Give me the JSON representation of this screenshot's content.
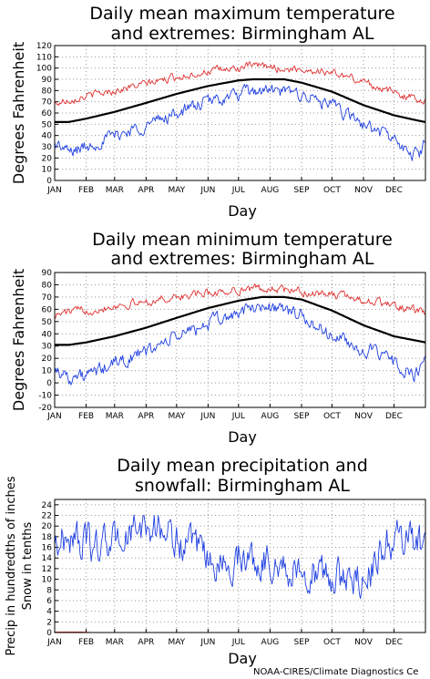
{
  "credit": "NOAA-CIRES/Climate Diagnostics Ce",
  "colors": {
    "mean": "#000000",
    "high": "#e03030",
    "low": "#2040e0",
    "snow": "#e03030",
    "grid": "#9a9a9a"
  },
  "chart_data": [
    {
      "type": "line",
      "title": [
        "Daily mean maximum temperature",
        "and extremes: Birmingham AL"
      ],
      "xlabel": "Day",
      "ylabel": "Degrees Fahrenheit",
      "months": [
        "JAN",
        "FEB",
        "MAR",
        "APR",
        "MAY",
        "JUN",
        "JUL",
        "AUG",
        "SEP",
        "OCT",
        "NOV",
        "DEC"
      ],
      "ylim": [
        0,
        120
      ],
      "yticks": [
        0,
        10,
        20,
        30,
        40,
        50,
        60,
        70,
        80,
        90,
        100,
        110,
        120
      ],
      "grid": true,
      "series": [
        {
          "name": "",
          "role": "mean",
          "color": "#000000",
          "knots": [
            [
              1,
              52
            ],
            [
              15,
              52
            ],
            [
              32,
              55
            ],
            [
              60,
              61
            ],
            [
              91,
              69
            ],
            [
              121,
              77
            ],
            [
              152,
              84
            ],
            [
              182,
              89
            ],
            [
              196,
              90
            ],
            [
              213,
              90
            ],
            [
              227,
              90
            ],
            [
              244,
              87
            ],
            [
              274,
              79
            ],
            [
              305,
              67
            ],
            [
              335,
              58
            ],
            [
              360,
              53
            ],
            [
              366,
              52
            ]
          ]
        },
        {
          "name": "",
          "role": "high",
          "color": "#e03030",
          "knots": [
            [
              1,
              68
            ],
            [
              15,
              72
            ],
            [
              32,
              75
            ],
            [
              60,
              80
            ],
            [
              91,
              86
            ],
            [
              121,
              92
            ],
            [
              152,
              97
            ],
            [
              182,
              100
            ],
            [
              196,
              102
            ],
            [
              213,
              101
            ],
            [
              227,
              99
            ],
            [
              244,
              99
            ],
            [
              274,
              96
            ],
            [
              305,
              88
            ],
            [
              335,
              78
            ],
            [
              360,
              72
            ],
            [
              366,
              72
            ]
          ]
        },
        {
          "name": "",
          "role": "low",
          "color": "#2040e0",
          "knots": [
            [
              1,
              33
            ],
            [
              15,
              25
            ],
            [
              32,
              30
            ],
            [
              60,
              40
            ],
            [
              91,
              49
            ],
            [
              121,
              60
            ],
            [
              152,
              70
            ],
            [
              182,
              76
            ],
            [
              196,
              79
            ],
            [
              213,
              80
            ],
            [
              227,
              78
            ],
            [
              244,
              77
            ],
            [
              274,
              66
            ],
            [
              305,
              50
            ],
            [
              335,
              37
            ],
            [
              350,
              22
            ],
            [
              360,
              25
            ],
            [
              366,
              35
            ]
          ]
        }
      ]
    },
    {
      "type": "line",
      "title": [
        "Daily mean minimum temperature",
        "and extremes: Birmingham AL"
      ],
      "xlabel": "Day",
      "ylabel": "Degrees Fahrenheit",
      "months": [
        "JAN",
        "FEB",
        "MAR",
        "APR",
        "MAY",
        "JUN",
        "JUL",
        "AUG",
        "SEP",
        "OCT",
        "NOV",
        "DEC"
      ],
      "ylim": [
        -20,
        90
      ],
      "yticks": [
        -20,
        -10,
        0,
        10,
        20,
        30,
        40,
        50,
        60,
        70,
        80,
        90
      ],
      "grid": true,
      "series": [
        {
          "name": "",
          "role": "mean",
          "color": "#000000",
          "knots": [
            [
              1,
              31
            ],
            [
              15,
              31
            ],
            [
              32,
              33
            ],
            [
              60,
              38
            ],
            [
              91,
              45
            ],
            [
              121,
              53
            ],
            [
              152,
              61
            ],
            [
              182,
              67
            ],
            [
              205,
              70
            ],
            [
              227,
              70
            ],
            [
              244,
              68
            ],
            [
              274,
              59
            ],
            [
              305,
              47
            ],
            [
              335,
              38
            ],
            [
              360,
              34
            ],
            [
              366,
              33
            ]
          ]
        },
        {
          "name": "",
          "role": "high",
          "color": "#e03030",
          "knots": [
            [
              1,
              55
            ],
            [
              15,
              58
            ],
            [
              32,
              59
            ],
            [
              60,
              63
            ],
            [
              91,
              66
            ],
            [
              121,
              70
            ],
            [
              152,
              73
            ],
            [
              182,
              76
            ],
            [
              205,
              77
            ],
            [
              227,
              76
            ],
            [
              244,
              74
            ],
            [
              274,
              72
            ],
            [
              305,
              68
            ],
            [
              335,
              63
            ],
            [
              360,
              58
            ],
            [
              366,
              57
            ]
          ]
        },
        {
          "name": "",
          "role": "low",
          "color": "#2040e0",
          "knots": [
            [
              1,
              12
            ],
            [
              15,
              5
            ],
            [
              32,
              5
            ],
            [
              60,
              16
            ],
            [
              91,
              25
            ],
            [
              121,
              38
            ],
            [
              152,
              48
            ],
            [
              182,
              57
            ],
            [
              205,
              63
            ],
            [
              227,
              60
            ],
            [
              244,
              54
            ],
            [
              274,
              38
            ],
            [
              305,
              27
            ],
            [
              335,
              17
            ],
            [
              355,
              5
            ],
            [
              366,
              15
            ]
          ]
        }
      ]
    },
    {
      "type": "line",
      "title": [
        "Daily mean precipitation and",
        "snowfall: Birmingham AL"
      ],
      "xlabel": "Day",
      "ylabel": [
        "Precip in hundredths of inches",
        "Snow in tenths"
      ],
      "months": [
        "JAN",
        "FEB",
        "MAR",
        "APR",
        "MAY",
        "JUN",
        "JUL",
        "AUG",
        "SEP",
        "OCT",
        "NOV",
        "DEC"
      ],
      "ylim": [
        0,
        25
      ],
      "yticks": [
        0,
        2,
        4,
        6,
        8,
        10,
        12,
        14,
        16,
        18,
        20,
        22,
        24
      ],
      "grid": true,
      "series": [
        {
          "name": "",
          "role": "precip",
          "color": "#2040e0",
          "knots": [
            [
              1,
              17
            ],
            [
              20,
              18
            ],
            [
              40,
              16
            ],
            [
              70,
              18
            ],
            [
              95,
              20
            ],
            [
              110,
              19
            ],
            [
              130,
              16
            ],
            [
              150,
              14
            ],
            [
              170,
              12
            ],
            [
              185,
              15
            ],
            [
              200,
              13
            ],
            [
              215,
              14
            ],
            [
              235,
              11
            ],
            [
              250,
              12
            ],
            [
              270,
              10
            ],
            [
              290,
              10
            ],
            [
              310,
              11
            ],
            [
              330,
              17
            ],
            [
              345,
              18
            ],
            [
              366,
              16
            ]
          ]
        },
        {
          "name": "",
          "role": "snow",
          "color": "#e03030",
          "knots": [
            [
              1,
              0.1
            ],
            [
              25,
              0.1
            ],
            [
              40,
              0
            ],
            [
              366,
              0
            ]
          ]
        }
      ]
    }
  ]
}
